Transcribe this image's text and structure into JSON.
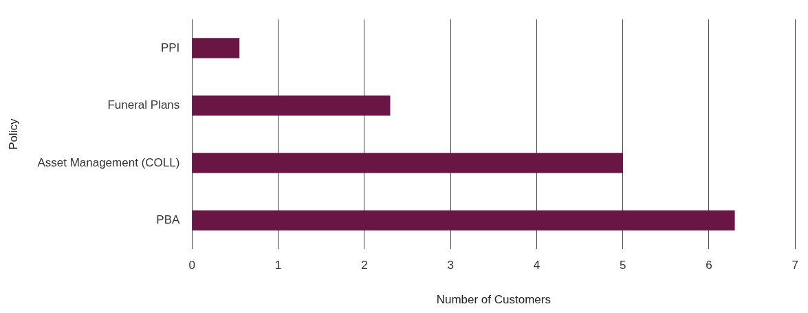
{
  "chart_data": {
    "type": "bar",
    "orientation": "horizontal",
    "categories": [
      "PPI",
      "Funeral Plans",
      "Asset Management (COLL)",
      "PBA"
    ],
    "values": [
      0.55,
      2.3,
      5,
      6.3
    ],
    "color": "#6a1645",
    "xlim": [
      0,
      7
    ],
    "xticks": [
      0,
      1,
      2,
      3,
      4,
      5,
      6,
      7
    ],
    "xlabel": "Number of Customers",
    "ylabel": "Policy",
    "grid": "x",
    "legend": false
  }
}
